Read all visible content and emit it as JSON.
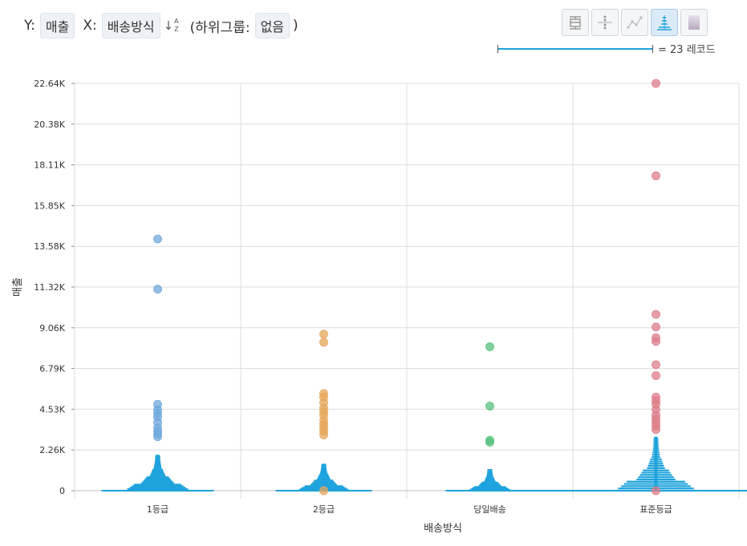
{
  "header": {
    "y_prefix": "Y:",
    "y_field": "매출",
    "x_prefix": "X:",
    "x_field": "배송방식",
    "sort_label": "A Z",
    "subgroup_prefix": "(하위그룹:",
    "subgroup_value": "없음",
    "subgroup_suffix": ")"
  },
  "toolbar": {
    "buttons": [
      {
        "icon": "boxplot-icon",
        "active": false
      },
      {
        "icon": "strip-plot-icon",
        "active": false
      },
      {
        "icon": "line-points-icon",
        "active": false
      },
      {
        "icon": "histogram-strip-icon",
        "active": true
      },
      {
        "icon": "gradient-icon",
        "active": false
      }
    ]
  },
  "legend": {
    "scale_text": "= 23 레코드"
  },
  "colors": {
    "accent": "#1fa3dc",
    "grid": "#dcdcdc",
    "series": [
      "#6fa8dc",
      "#e6a75a",
      "#57c27c",
      "#dd7d8a"
    ]
  },
  "chart_data": {
    "type": "scatter",
    "title": "",
    "xlabel": "배송방식",
    "ylabel": "매출",
    "categories": [
      "1등급",
      "2등급",
      "당일배송",
      "표준등급"
    ],
    "yticks": [
      "0",
      "2.26K",
      "4.53K",
      "6.79K",
      "9.06K",
      "11.32K",
      "13.58K",
      "15.85K",
      "18.11K",
      "20.38K",
      "22.64K"
    ],
    "ylim": [
      0,
      22640
    ],
    "grid": true,
    "outliers": [
      {
        "category": "1등급",
        "values": [
          13990,
          11200,
          4800,
          4500,
          4300,
          4100,
          3800,
          3500,
          3300,
          3150,
          3000
        ]
      },
      {
        "category": "2등급",
        "values": [
          8700,
          8250,
          5400,
          5200,
          4900,
          4600,
          4400,
          4200,
          3900,
          3700,
          3500,
          3300,
          3100,
          0
        ]
      },
      {
        "category": "당일배송",
        "values": [
          8000,
          4700,
          2800,
          2700
        ]
      },
      {
        "category": "표준등급",
        "values": [
          22640,
          17500,
          9800,
          9100,
          8500,
          8300,
          7000,
          6400,
          5200,
          5000,
          4800,
          4500,
          4200,
          4000,
          3800,
          3600,
          3400,
          0
        ]
      }
    ]
  }
}
